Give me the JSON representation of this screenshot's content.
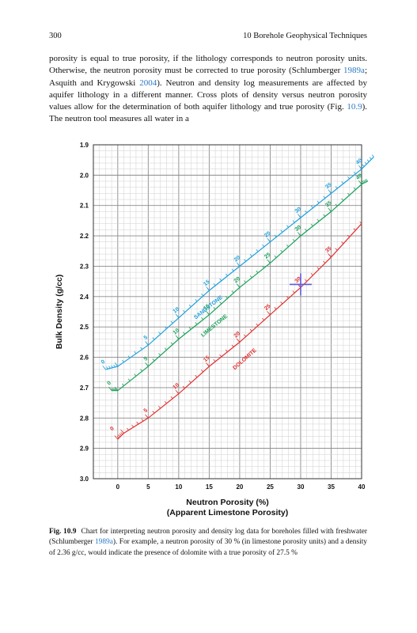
{
  "header": {
    "page_number": "300",
    "running_title": "10   Borehole Geophysical Techniques"
  },
  "body": {
    "parts": [
      "porosity is equal to true porosity, if the lithology corresponds to neutron porosity units. Otherwise, the neutron porosity must be corrected to true porosity (Schlumberger ",
      "1989a",
      "; Asquith and Krygowski ",
      "2004",
      "). Neutron and density log measurements are affected by aquifer lithology in a different manner. Cross plots of density versus neutron porosity values allow for the determination of both aquifer lithology and true porosity (Fig. ",
      "10.9",
      "). The neutron tool measures all water in a"
    ]
  },
  "caption": {
    "label": "Fig. 10.9",
    "parts": [
      "Chart for interpreting neutron porosity and density log data for boreholes filled with freshwater (Schlumberger ",
      "1989a",
      "). For example, a neutron porosity of 30 % (in limestone porosity units) and a density of 2.36 g/cc, would indicate the presence of dolomite with a true porosity of 27.5 %"
    ]
  },
  "chart_data": {
    "type": "line",
    "title": "",
    "xlabel": "Neutron Porosity (%)",
    "xlabel_sub": "(Apparent Limestone Porosity)",
    "ylabel": "Bulk Density (g/cc)",
    "xlim": [
      -4,
      40
    ],
    "ylim": [
      1.9,
      3.0
    ],
    "y_reversed": true,
    "x_ticks": [
      "0",
      "5",
      "10",
      "15",
      "20",
      "25",
      "30",
      "35",
      "40"
    ],
    "y_ticks": [
      "1.9",
      "2.0",
      "2.1",
      "2.2",
      "2.3",
      "2.4",
      "2.5",
      "2.6",
      "2.7",
      "2.8",
      "2.9",
      "3.0"
    ],
    "grid": true,
    "series": [
      {
        "name": "SANDSTONE",
        "color": "#1ea0dc",
        "points": [
          [
            -2,
            2.64
          ],
          [
            0,
            2.63
          ],
          [
            5,
            2.56
          ],
          [
            10,
            2.47
          ],
          [
            15,
            2.38
          ],
          [
            20,
            2.3
          ],
          [
            25,
            2.22
          ],
          [
            30,
            2.14
          ],
          [
            35,
            2.06
          ],
          [
            40,
            1.98
          ],
          [
            42,
            1.94
          ]
        ],
        "labels": [
          [
            "0",
            -2,
            2.64
          ],
          [
            "5",
            5,
            2.56
          ],
          [
            "10",
            10,
            2.47
          ],
          [
            "15",
            15,
            2.38
          ],
          [
            "20",
            20,
            2.3
          ],
          [
            "25",
            25,
            2.22
          ],
          [
            "30",
            30,
            2.14
          ],
          [
            "35",
            35,
            2.06
          ],
          [
            "40",
            40,
            1.98
          ]
        ],
        "name_at": [
          15,
          2.44
        ]
      },
      {
        "name": "LIMESTONE",
        "color": "#1aa05a",
        "points": [
          [
            -1,
            2.71
          ],
          [
            0,
            2.71
          ],
          [
            5,
            2.63
          ],
          [
            10,
            2.54
          ],
          [
            15,
            2.46
          ],
          [
            20,
            2.37
          ],
          [
            25,
            2.29
          ],
          [
            30,
            2.2
          ],
          [
            35,
            2.12
          ],
          [
            40,
            2.03
          ],
          [
            41,
            2.02
          ]
        ],
        "labels": [
          [
            "0",
            -1,
            2.71
          ],
          [
            "5",
            5,
            2.63
          ],
          [
            "10",
            10,
            2.54
          ],
          [
            "15",
            15,
            2.46
          ],
          [
            "20",
            20,
            2.37
          ],
          [
            "25",
            25,
            2.29
          ],
          [
            "30",
            30,
            2.2
          ],
          [
            "35",
            35,
            2.12
          ],
          [
            "40",
            40,
            2.03
          ]
        ],
        "name_at": [
          16,
          2.5
        ]
      },
      {
        "name": "DOLOMITE",
        "color": "#e03030",
        "points": [
          [
            0,
            2.87
          ],
          [
            1,
            2.85
          ],
          [
            5,
            2.8
          ],
          [
            10,
            2.72
          ],
          [
            15,
            2.63
          ],
          [
            20,
            2.55
          ],
          [
            25,
            2.46
          ],
          [
            30,
            2.37
          ],
          [
            35,
            2.27
          ],
          [
            40,
            2.16
          ]
        ],
        "labels": [
          [
            "0",
            -0.5,
            2.86
          ],
          [
            "5",
            5,
            2.8
          ],
          [
            "10",
            10,
            2.72
          ],
          [
            "15",
            15,
            2.63
          ],
          [
            "20",
            20,
            2.55
          ],
          [
            "25",
            25,
            2.46
          ],
          [
            "30",
            30,
            2.37
          ],
          [
            "35",
            35,
            2.27
          ]
        ],
        "name_at": [
          21,
          2.61
        ]
      }
    ],
    "example_point": {
      "x": 30,
      "y": 2.36,
      "color": "#5a5ae0"
    }
  }
}
